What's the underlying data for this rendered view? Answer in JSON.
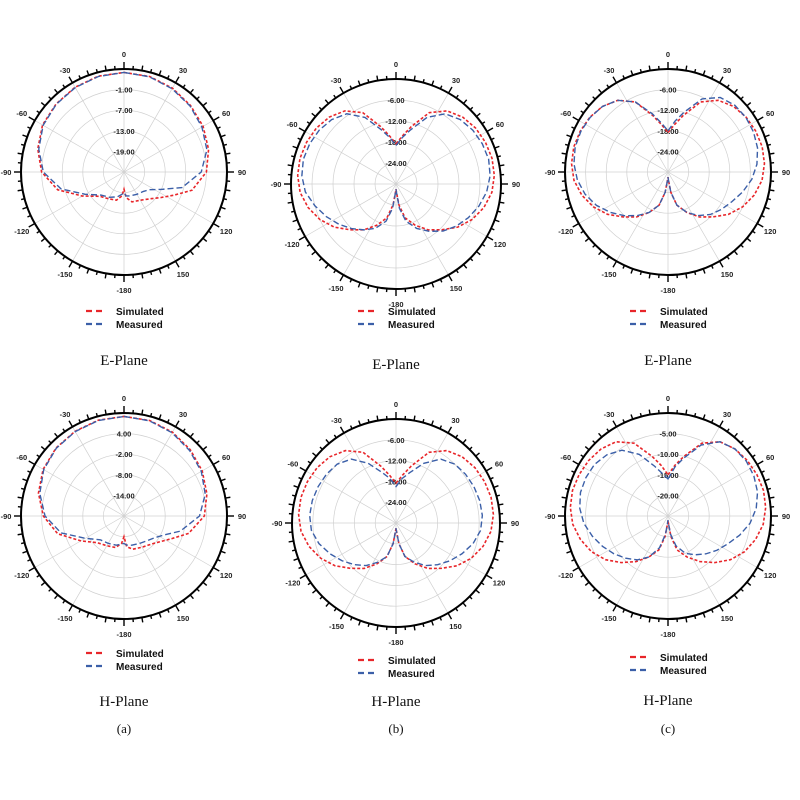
{
  "figure": {
    "panel_labels": [
      "(a)",
      "(b)",
      "(c)"
    ]
  },
  "colors": {
    "simulated": "#e8262a",
    "measured": "#3b5fa8",
    "grid": "#d0d0d0",
    "frame": "#000000"
  },
  "chart_data": [
    {
      "type": "polar",
      "plane": "E-Plane",
      "column": "(a)",
      "angle_ticks": [
        "0",
        "30",
        "60",
        "90",
        "120",
        "150",
        "-180",
        "-150",
        "-120",
        "-90",
        "-60",
        "-30"
      ],
      "ring_labels": [
        "-1.00",
        "-7.00",
        "-13.00",
        "-19.00"
      ],
      "rmax": 5,
      "rmin": -25,
      "legend": [
        "Simulated",
        "Measured"
      ],
      "series": [
        {
          "name": "Simulated",
          "angles": [
            0,
            15,
            30,
            45,
            60,
            75,
            90,
            105,
            115,
            125,
            135,
            150,
            165,
            175,
            180,
            185,
            195,
            210,
            225,
            240,
            255,
            270,
            285,
            300,
            315,
            330,
            345
          ],
          "values": [
            4,
            3.8,
            3.2,
            2.4,
            1.6,
            0.5,
            -1,
            -4.5,
            -9,
            -12,
            -14,
            -15.5,
            -16,
            -17.5,
            -20,
            -18,
            -16.5,
            -16,
            -15,
            -11,
            -5,
            -1,
            1,
            2.4,
            3,
            3.5,
            3.9
          ]
        },
        {
          "name": "Measured",
          "angles": [
            0,
            15,
            30,
            45,
            60,
            75,
            90,
            105,
            115,
            125,
            135,
            150,
            165,
            175,
            180,
            185,
            195,
            210,
            225,
            240,
            255,
            270,
            285,
            300,
            315,
            330,
            345
          ],
          "values": [
            4,
            3.7,
            3.0,
            2.2,
            1.2,
            0,
            -2.5,
            -7.5,
            -13,
            -16,
            -17,
            -17.5,
            -17.8,
            -18,
            -19,
            -18.5,
            -17.5,
            -16.5,
            -15.5,
            -12,
            -6,
            -1.5,
            0.7,
            2.2,
            2.9,
            3.4,
            3.8
          ]
        }
      ]
    },
    {
      "type": "polar",
      "plane": "E-Plane",
      "column": "(b)",
      "angle_ticks": [
        "0",
        "30",
        "60",
        "90",
        "120",
        "150",
        "-180",
        "-150",
        "-120",
        "-90",
        "-60",
        "-30"
      ],
      "ring_labels": [
        "-6.00",
        "-12.00",
        "-18.00",
        "-24.00"
      ],
      "rmax": 0,
      "rmin": -30,
      "legend": [
        "Simulated",
        "Measured"
      ],
      "series": [
        {
          "name": "Simulated",
          "angles": [
            0,
            8,
            15,
            25,
            35,
            45,
            55,
            65,
            75,
            85,
            95,
            105,
            115,
            125,
            135,
            145,
            155,
            165,
            172,
            178,
            180,
            182,
            188,
            195,
            205,
            215,
            225,
            235,
            245,
            255,
            265,
            275,
            285,
            295,
            305,
            315,
            325,
            335,
            345,
            352
          ],
          "values": [
            -18.5,
            -16,
            -13,
            -7.5,
            -4.5,
            -3,
            -2.2,
            -1.8,
            -1.6,
            -1.8,
            -2.5,
            -4,
            -6,
            -8.5,
            -11.5,
            -14,
            -17,
            -20,
            -24,
            -28,
            -28.5,
            -28,
            -24,
            -20,
            -17,
            -14,
            -11.5,
            -8.5,
            -6,
            -4,
            -2.5,
            -1.8,
            -1.6,
            -1.8,
            -2.2,
            -3,
            -4.5,
            -7.5,
            -13,
            -16
          ]
        },
        {
          "name": "Measured",
          "angles": [
            0,
            8,
            15,
            25,
            35,
            45,
            55,
            65,
            75,
            85,
            95,
            105,
            115,
            125,
            135,
            145,
            155,
            165,
            172,
            178,
            180,
            182,
            188,
            195,
            205,
            215,
            225,
            235,
            245,
            255,
            265,
            275,
            285,
            295,
            305,
            315,
            325,
            335,
            345,
            352
          ],
          "values": [
            -19,
            -16.5,
            -14,
            -9,
            -5.5,
            -4,
            -3.2,
            -2.8,
            -2.6,
            -3,
            -4,
            -5.5,
            -7.2,
            -9,
            -11,
            -13.5,
            -16,
            -19,
            -23,
            -28,
            -28.5,
            -28,
            -23,
            -19,
            -16,
            -14,
            -12,
            -10,
            -8,
            -6,
            -4,
            -3,
            -2.6,
            -2.8,
            -3.2,
            -4,
            -5.5,
            -9,
            -14,
            -16.5
          ]
        }
      ]
    },
    {
      "type": "polar",
      "plane": "E-Plane",
      "column": "(c)",
      "angle_ticks": [
        "0",
        "30",
        "60",
        "90",
        "120",
        "150",
        "-180",
        "-150",
        "-120",
        "-90",
        "-60",
        "-30"
      ],
      "ring_labels": [
        "-6.00",
        "-12.00",
        "-18.00",
        "-24.00"
      ],
      "rmax": 0,
      "rmin": -30,
      "legend": [
        "Simulated",
        "Measured"
      ],
      "series": [
        {
          "name": "Simulated",
          "angles": [
            0,
            8,
            15,
            25,
            35,
            45,
            55,
            65,
            75,
            85,
            95,
            105,
            115,
            125,
            135,
            145,
            155,
            165,
            172,
            178,
            180,
            182,
            188,
            195,
            205,
            215,
            225,
            235,
            245,
            255,
            265,
            275,
            285,
            295,
            305,
            315,
            325,
            335,
            345,
            352
          ],
          "values": [
            -18.5,
            -16,
            -13,
            -7.5,
            -4.5,
            -3,
            -2.2,
            -1.8,
            -1.6,
            -1.8,
            -2.5,
            -4,
            -6,
            -8.5,
            -11.5,
            -14,
            -17,
            -20,
            -24,
            -28,
            -28.5,
            -28,
            -24,
            -20,
            -17,
            -14,
            -11.5,
            -8.5,
            -6,
            -4,
            -2.5,
            -1.8,
            -1.6,
            -1.8,
            -2.2,
            -3,
            -4.5,
            -7.5,
            -13,
            -16
          ]
        },
        {
          "name": "Measured",
          "angles": [
            0,
            8,
            15,
            25,
            35,
            45,
            55,
            65,
            75,
            85,
            95,
            105,
            115,
            125,
            135,
            145,
            155,
            165,
            172,
            178,
            180,
            182,
            188,
            195,
            205,
            215,
            225,
            235,
            245,
            255,
            265,
            275,
            285,
            295,
            305,
            315,
            325,
            335,
            345,
            352
          ],
          "values": [
            -18,
            -15,
            -12,
            -6.5,
            -3.5,
            -2.5,
            -2.3,
            -2.5,
            -3,
            -4,
            -5.5,
            -7.5,
            -9.5,
            -11,
            -12.5,
            -14.5,
            -17,
            -20,
            -24,
            -28,
            -28.5,
            -28,
            -24,
            -20,
            -17,
            -14.5,
            -12,
            -9.5,
            -7,
            -5,
            -3.5,
            -2.5,
            -2,
            -2,
            -2.3,
            -3,
            -4.5,
            -7.5,
            -12.5,
            -15.5
          ]
        }
      ]
    },
    {
      "type": "polar",
      "plane": "H-Plane",
      "column": "(a)",
      "angle_ticks": [
        "0",
        "30",
        "60",
        "90",
        "120",
        "150",
        "-180",
        "-150",
        "-120",
        "-90",
        "-60",
        "-30"
      ],
      "ring_labels": [
        "4.00",
        "-2.00",
        "-8.00",
        "-14.00"
      ],
      "rmax": 10,
      "rmin": -20,
      "legend": [
        "Simulated",
        "Measured"
      ],
      "series": [
        {
          "name": "Simulated",
          "angles": [
            0,
            15,
            30,
            45,
            60,
            75,
            90,
            105,
            115,
            125,
            135,
            150,
            165,
            175,
            180,
            185,
            195,
            210,
            225,
            240,
            255,
            270,
            285,
            300,
            315,
            330,
            345
          ],
          "values": [
            9,
            8.8,
            8.2,
            7.3,
            6.3,
            5,
            3.4,
            -0.5,
            -4.5,
            -7,
            -8.5,
            -9.5,
            -10,
            -11,
            -14,
            -12,
            -10.5,
            -10,
            -9,
            -5.5,
            0,
            3.5,
            5.8,
            7.2,
            8,
            8.5,
            8.9
          ]
        },
        {
          "name": "Measured",
          "angles": [
            0,
            15,
            30,
            45,
            60,
            75,
            90,
            105,
            115,
            125,
            135,
            150,
            165,
            175,
            180,
            185,
            195,
            210,
            225,
            240,
            255,
            270,
            285,
            300,
            315,
            330,
            345
          ],
          "values": [
            9,
            8.7,
            8.0,
            7.0,
            6.0,
            4.5,
            2,
            -3,
            -7,
            -9,
            -10,
            -10.8,
            -11.2,
            -11.5,
            -12,
            -11.8,
            -11.2,
            -10.8,
            -10.2,
            -7,
            -1,
            3,
            5.4,
            7.0,
            7.9,
            8.4,
            8.8
          ]
        }
      ]
    },
    {
      "type": "polar",
      "plane": "H-Plane",
      "column": "(b)",
      "angle_ticks": [
        "0",
        "30",
        "60",
        "90",
        "120",
        "150",
        "-180",
        "-150",
        "-120",
        "-90",
        "-60",
        "-30"
      ],
      "ring_labels": [
        "-6.00",
        "-12.00",
        "-18.00",
        "-24.00"
      ],
      "rmax": 0,
      "rmin": -30,
      "legend": [
        "Simulated",
        "Measured"
      ],
      "series": [
        {
          "name": "Simulated",
          "angles": [
            0,
            8,
            15,
            25,
            35,
            45,
            55,
            65,
            75,
            85,
            95,
            105,
            115,
            125,
            135,
            145,
            155,
            165,
            172,
            178,
            180,
            182,
            188,
            195,
            205,
            215,
            225,
            235,
            245,
            255,
            265,
            275,
            285,
            295,
            305,
            315,
            325,
            335,
            345,
            352
          ],
          "values": [
            -18.5,
            -16,
            -13,
            -7.5,
            -4.5,
            -3,
            -2.2,
            -1.8,
            -1.6,
            -1.8,
            -2.5,
            -4,
            -6,
            -8.5,
            -11.5,
            -14,
            -17,
            -20,
            -24,
            -28,
            -28.5,
            -28,
            -24,
            -20,
            -17,
            -14,
            -11.5,
            -8.5,
            -6,
            -4,
            -2.5,
            -1.8,
            -1.6,
            -1.8,
            -2.2,
            -3,
            -4.5,
            -7.5,
            -13,
            -16
          ]
        },
        {
          "name": "Measured",
          "angles": [
            0,
            8,
            15,
            25,
            35,
            45,
            55,
            65,
            75,
            85,
            95,
            105,
            115,
            125,
            135,
            145,
            155,
            165,
            172,
            178,
            180,
            182,
            188,
            195,
            205,
            215,
            225,
            235,
            245,
            255,
            265,
            275,
            285,
            295,
            305,
            315,
            325,
            335,
            345,
            352
          ],
          "values": [
            -19.5,
            -17,
            -15,
            -11,
            -7.5,
            -6,
            -5.5,
            -5.2,
            -5,
            -5,
            -5.5,
            -7,
            -9,
            -11,
            -13,
            -15,
            -17.5,
            -20,
            -24,
            -28,
            -28.5,
            -28,
            -24,
            -20,
            -17.5,
            -15,
            -13,
            -11,
            -9,
            -7,
            -5.5,
            -5,
            -5,
            -5.2,
            -5.5,
            -6,
            -7.5,
            -11,
            -15,
            -17
          ]
        }
      ]
    },
    {
      "type": "polar",
      "plane": "H-Plane",
      "column": "(c)",
      "angle_ticks": [
        "0",
        "30",
        "60",
        "90",
        "120",
        "150",
        "-180",
        "-150",
        "-120",
        "-90",
        "-60",
        "-30"
      ],
      "ring_labels": [
        "-5.00",
        "-10.00",
        "-15.00",
        "-20.00"
      ],
      "rmax": 0,
      "rmin": -25,
      "legend": [
        "Simulated",
        "Measured"
      ],
      "series": [
        {
          "name": "Simulated",
          "angles": [
            0,
            8,
            15,
            25,
            35,
            45,
            55,
            65,
            75,
            85,
            95,
            105,
            115,
            125,
            135,
            145,
            155,
            165,
            172,
            178,
            180,
            182,
            188,
            195,
            205,
            215,
            225,
            235,
            245,
            255,
            265,
            275,
            285,
            295,
            305,
            315,
            325,
            335,
            345,
            352
          ],
          "values": [
            -15,
            -12.5,
            -10,
            -5.5,
            -3,
            -2,
            -1.5,
            -1.2,
            -1,
            -1.2,
            -1.8,
            -3,
            -4.5,
            -6.5,
            -9,
            -11.5,
            -14,
            -16.5,
            -20,
            -23.5,
            -24,
            -23.5,
            -20,
            -16.5,
            -14,
            -11.5,
            -9,
            -6.5,
            -4.5,
            -3,
            -1.8,
            -1.2,
            -1,
            -1.2,
            -1.5,
            -2,
            -3,
            -5.5,
            -10,
            -12.5
          ]
        },
        {
          "name": "Measured",
          "angles": [
            0,
            8,
            15,
            25,
            35,
            45,
            55,
            65,
            75,
            85,
            95,
            105,
            115,
            125,
            135,
            145,
            155,
            165,
            172,
            178,
            180,
            182,
            188,
            195,
            205,
            215,
            225,
            235,
            245,
            255,
            265,
            275,
            285,
            295,
            305,
            315,
            325,
            335,
            345,
            352
          ],
          "values": [
            -16,
            -13,
            -10.5,
            -6,
            -3,
            -2,
            -1.8,
            -2,
            -2.5,
            -3.5,
            -5,
            -7,
            -9,
            -10.5,
            -12,
            -13.5,
            -15,
            -17.5,
            -20.5,
            -23.5,
            -24,
            -23.5,
            -20.5,
            -17,
            -14,
            -12,
            -10.5,
            -9,
            -7.5,
            -6,
            -4.5,
            -3.5,
            -3,
            -3,
            -3.2,
            -4,
            -5.5,
            -8.5,
            -12.5,
            -14.5
          ]
        }
      ]
    }
  ]
}
